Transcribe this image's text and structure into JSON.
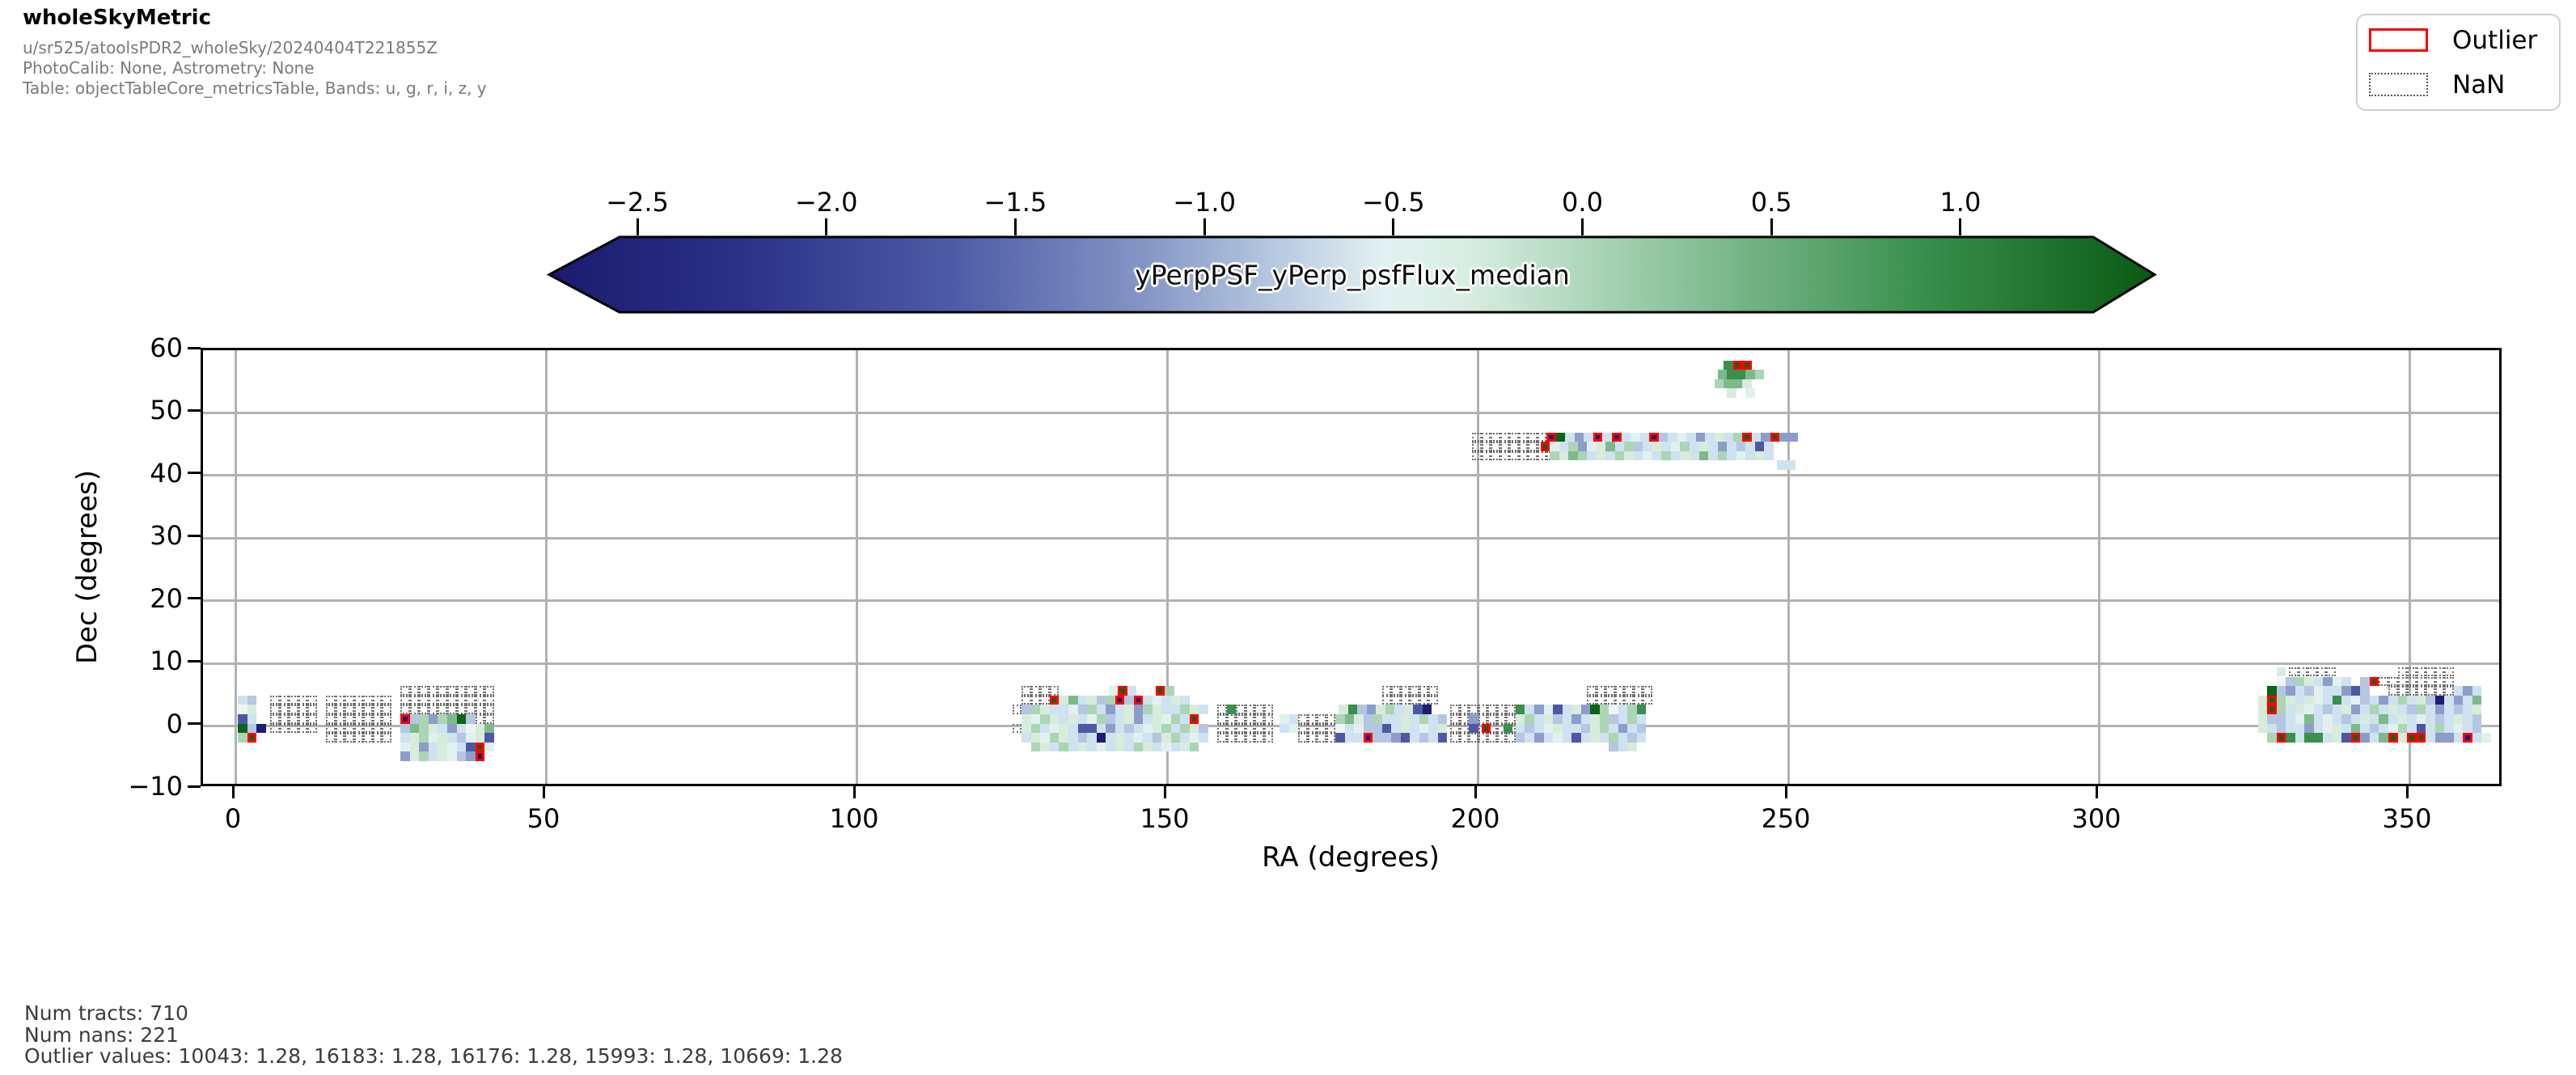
{
  "header": {
    "title": "wholeSkyMetric",
    "run": "u/sr525/atoolsPDR2_wholeSky/20240404T221855Z",
    "calib": "PhotoCalib: None, Astrometry: None",
    "table": "Table: objectTableCore_metricsTable, Bands: u, g, r, i, z, y"
  },
  "legend": {
    "outlier_label": "Outlier",
    "nan_label": "NaN",
    "outlier_color": "#ff0000"
  },
  "footer": {
    "num_tracts": "Num tracts: 710",
    "num_nans": "Num nans: 221",
    "outlier_values": "Outlier values: 10043: 1.28, 16183: 1.28, 16176: 1.28, 15993: 1.28, 10669: 1.28"
  },
  "chart_data": {
    "type": "heatmap",
    "title": "yPerpPSF_yPerp_psfFlux_median",
    "xlabel": "RA (degrees)",
    "ylabel": "Dec (degrees)",
    "xlim": [
      -5.2,
      365.2
    ],
    "ylim": [
      -10,
      60
    ],
    "x_ticks": [
      0,
      50,
      100,
      150,
      200,
      250,
      300,
      350
    ],
    "y_ticks": [
      -10,
      0,
      10,
      20,
      30,
      40,
      50,
      60
    ],
    "grid": true,
    "cell_size_deg": 1.5,
    "colorbar": {
      "label": "yPerpPSF_yPerp_psfFlux_median",
      "tick_values": [
        -2.5,
        -2.0,
        -1.5,
        -1.0,
        -0.5,
        0.0,
        0.5,
        1.0
      ],
      "tick_labels": [
        "−2.5",
        "−2.0",
        "−1.5",
        "−1.0",
        "−0.5",
        "0.0",
        "0.5",
        "1.0"
      ],
      "gradient": [
        {
          "o": 0.0,
          "c": "#1b1b6e"
        },
        {
          "o": 0.12,
          "c": "#2b3187"
        },
        {
          "o": 0.25,
          "c": "#4d5ba6"
        },
        {
          "o": 0.37,
          "c": "#8495c5"
        },
        {
          "o": 0.46,
          "c": "#bccde3"
        },
        {
          "o": 0.52,
          "c": "#e2f1f2"
        },
        {
          "o": 0.57,
          "c": "#d9eee3"
        },
        {
          "o": 0.65,
          "c": "#abd5b8"
        },
        {
          "o": 0.75,
          "c": "#72b282"
        },
        {
          "o": 0.85,
          "c": "#3c9150"
        },
        {
          "o": 1.0,
          "c": "#0a5a13"
        }
      ]
    },
    "palette": {
      "a": "#e2f1ef",
      "b": "#cfe2f0",
      "c": "#b5c6e2",
      "d": "#8d9dca",
      "e": "#4d58a4",
      "f": "#1d1d76",
      "g": "#d8ecdc",
      "h": "#abd5b5",
      "i": "#7cba8b",
      "j": "#3a8f4e",
      "k": "#0d6317",
      "w": "#eef5f2"
    },
    "nan_char": ".",
    "segments": [
      {
        "ra": 0.8,
        "dec": 4.5,
        "c": "bc"
      },
      {
        "ra": 0.8,
        "dec": 3,
        "c": "wg"
      },
      {
        "ra": 0.8,
        "dec": 1.5,
        "c": "eb"
      },
      {
        "ra": 0.8,
        "dec": 0,
        "c": "kcf"
      },
      {
        "ra": 0.8,
        "dec": -1.5,
        "c": "hK"
      },
      {
        "ra": 6,
        "dec": 4.5,
        "c": "....."
      },
      {
        "ra": 6,
        "dec": 3,
        "c": "....."
      },
      {
        "ra": 6,
        "dec": 1.5,
        "c": "....."
      },
      {
        "ra": 6,
        "dec": 0,
        "c": "....."
      },
      {
        "ra": 15,
        "dec": 4.5,
        "c": "......."
      },
      {
        "ra": 15,
        "dec": 3,
        "c": "......."
      },
      {
        "ra": 15,
        "dec": 1.5,
        "c": "......."
      },
      {
        "ra": 15,
        "dec": 0,
        "c": "......."
      },
      {
        "ra": 15,
        "dec": -1.5,
        "c": "......."
      },
      {
        "ra": 27,
        "dec": 6,
        "c": ".........."
      },
      {
        "ra": 27,
        "dec": 4.5,
        "c": ".........."
      },
      {
        "ra": 27,
        "dec": 3,
        "c": ".........."
      },
      {
        "ra": 27,
        "dec": 1.5,
        "c": "Fchdhikc.."
      },
      {
        "ra": 27,
        "dec": 0,
        "c": "cihgbdbwgi"
      },
      {
        "ra": 27,
        "dec": -1.5,
        "c": "bghagbcage"
      },
      {
        "ra": 27,
        "dec": -3,
        "c": "agdbgabeKa"
      },
      {
        "ra": 27,
        "dec": -4.5,
        "c": "dghbgacdF"
      },
      {
        "ra": 127,
        "dec": 6,
        "c": "...."
      },
      {
        "ra": 125.5,
        "dec": 3,
        "c": ".."
      },
      {
        "ra": 125.5,
        "dec": 0,
        "c": ".."
      },
      {
        "ra": 141,
        "dec": 6,
        "c": "aKb"
      },
      {
        "ra": 148.5,
        "dec": 6,
        "c": "Kh"
      },
      {
        "ra": 127,
        "dec": 4.5,
        "c": "...KgibgchFcFbabgb"
      },
      {
        "ra": 127,
        "dec": 3,
        "c": "chgbbachbdbgdhgbbhgb"
      },
      {
        "ra": 127,
        "dec": 1.5,
        "c": "gahgbgbahcbgdbgahbK"
      },
      {
        "ra": 127,
        "dec": 0,
        "c": "ghbagbeebdbcbaghbhgc"
      },
      {
        "ra": 127,
        "dec": -1.5,
        "c": "bgahgbcbfbgbabcghbab"
      },
      {
        "ra": 128.5,
        "dec": -3,
        "c": "hgbhbgbabgbhgbabgh"
      },
      {
        "ra": 158.5,
        "dec": 3,
        "c": "......"
      },
      {
        "ra": 158.5,
        "dec": 1.5,
        "c": "......"
      },
      {
        "ra": 158.5,
        "dec": 0,
        "c": "......"
      },
      {
        "ra": 158.5,
        "dec": -1.5,
        "c": "......"
      },
      {
        "ra": 160,
        "dec": 3,
        "c": "j"
      },
      {
        "ra": 168.5,
        "dec": 1.5,
        "c": "ab"
      },
      {
        "ra": 168.5,
        "dec": 0,
        "c": "ba"
      },
      {
        "ra": 171.5,
        "dec": 1.5,
        "c": "...."
      },
      {
        "ra": 171.5,
        "dec": 0,
        "c": "...."
      },
      {
        "ra": 171.5,
        "dec": -1.5,
        "c": "...."
      },
      {
        "ra": 178,
        "dec": 3,
        "c": "gjcdghbgef"
      },
      {
        "ra": 177.5,
        "dec": 1.5,
        "c": "higchbbgbhbc"
      },
      {
        "ra": 177.5,
        "dec": 0,
        "c": "wbaccebgbabg"
      },
      {
        "ra": 177.5,
        "dec": -1.5,
        "c": "ebbFccdebcbe"
      },
      {
        "ra": 185,
        "dec": 6,
        "c": "......"
      },
      {
        "ra": 185,
        "dec": 4.5,
        "c": "......"
      },
      {
        "ra": 196,
        "dec": 3,
        "c": "......."
      },
      {
        "ra": 196,
        "dec": 1.5,
        "c": "......."
      },
      {
        "ra": 196,
        "dec": 0,
        "c": "......."
      },
      {
        "ra": 196,
        "dec": -1.5,
        "c": "......."
      },
      {
        "ra": 199,
        "dec": 1.5,
        "c": "d"
      },
      {
        "ra": 199,
        "dec": 0,
        "c": "e"
      },
      {
        "ra": 201,
        "dec": 0,
        "c": "K"
      },
      {
        "ra": 204.5,
        "dec": 0,
        "c": "j"
      },
      {
        "ra": 206.5,
        "dec": 3,
        "c": "jbdaebgdkhwbhj"
      },
      {
        "ra": 206.5,
        "dec": 1.5,
        "c": "ghbgcbdbghcbhb"
      },
      {
        "ra": 206.5,
        "dec": 0,
        "c": "bcbagbbcghbdbc"
      },
      {
        "ra": 206.5,
        "dec": -1.5,
        "c": "cbdbabebgbhbcb"
      },
      {
        "ra": 221.5,
        "dec": -3,
        "c": "cbg"
      },
      {
        "ra": 218,
        "dec": 6,
        "c": "......."
      },
      {
        "ra": 218,
        "dec": 4.5,
        "c": "......."
      },
      {
        "ra": 199.5,
        "dec": 46.5,
        "c": "........."
      },
      {
        "ra": 199.5,
        "dec": 45,
        "c": "........."
      },
      {
        "ra": 199.5,
        "dec": 43.5,
        "c": "........."
      },
      {
        "ra": 211.5,
        "dec": 46.5,
        "c": "FkbdbFbFbabFcbabdbgbhKbdKdd"
      },
      {
        "ra": 210.5,
        "dec": 45,
        "c": "Kabhdagibhcbgbahbgbdbcbeb"
      },
      {
        "ra": 212,
        "dec": 43.5,
        "c": "hgihbgbhgbabhbgbibhbabgb"
      },
      {
        "ra": 248.5,
        "dec": 42,
        "c": "bb"
      },
      {
        "ra": 240,
        "dec": 58,
        "c": "jKK"
      },
      {
        "ra": 239,
        "dec": 56.5,
        "c": "ijjih"
      },
      {
        "ra": 238.5,
        "dec": 55,
        "c": "hiig"
      },
      {
        "ra": 240.5,
        "dec": 53.5,
        "c": "g a"
      },
      {
        "ra": 329,
        "dec": 9,
        "c": "g"
      },
      {
        "ra": 331,
        "dec": 9,
        "c": "....."
      },
      {
        "ra": 348.5,
        "dec": 9,
        "c": "......"
      },
      {
        "ra": 329,
        "dec": 7.5,
        "c": "wchgbdab"
      },
      {
        "ra": 342.5,
        "dec": 7.5,
        "c": "cK"
      },
      {
        "ra": 345.5,
        "dec": 7.5,
        "c": "........"
      },
      {
        "ra": 327.5,
        "dec": 6,
        "c": "kcdbcabbdec"
      },
      {
        "ra": 347,
        "dec": 6,
        "c": "......."
      },
      {
        "ra": 357.5,
        "dec": 6,
        "c": "bdb"
      },
      {
        "ra": 326,
        "dec": 4.5,
        "c": "gKhgbgabjbacbdbhbgcfbdbi"
      },
      {
        "ra": 326,
        "dec": 3,
        "c": "gKhbgabcbgdbhbgbchbdbcbg"
      },
      {
        "ra": 326,
        "dec": 1.5,
        "c": "gccbaibabcbgbibgbabcbgbc"
      },
      {
        "ra": 326,
        "dec": 0,
        "c": "gbcbbdbagbibcbahbebhbabc"
      },
      {
        "ra": 327.5,
        "dec": -1.5,
        "c": "hKjbjjbgeKdbiKgKKbddbFba"
      }
    ]
  }
}
